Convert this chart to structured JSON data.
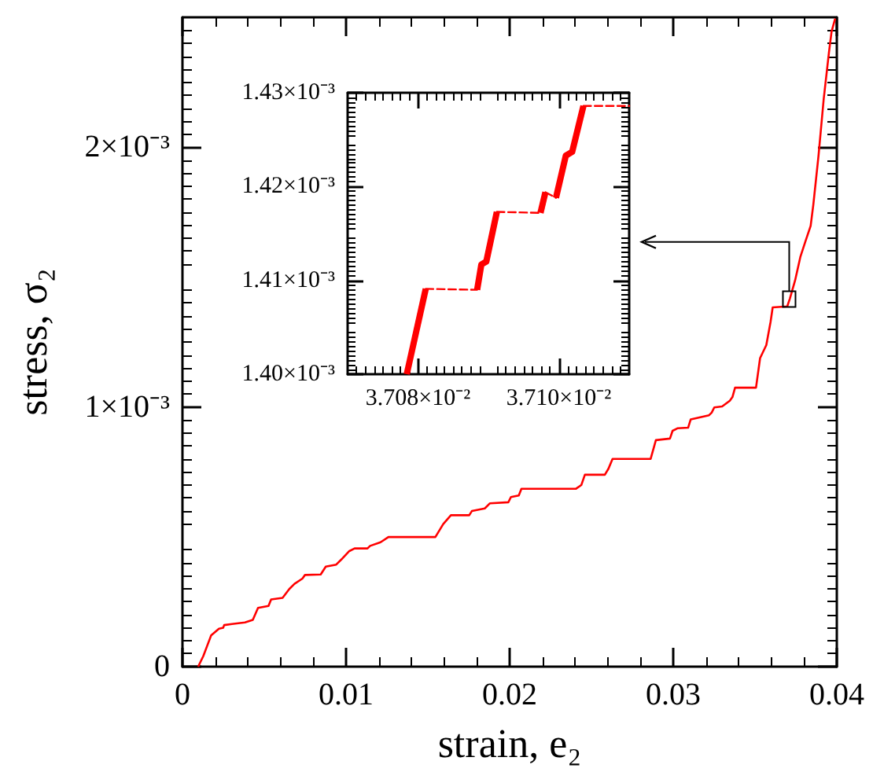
{
  "chart_data": [
    {
      "type": "line",
      "xlabel": "strain, e₂",
      "ylabel": "stress, σ₂",
      "xlim": [
        0,
        0.04
      ],
      "xticks": [
        0,
        0.01,
        0.02,
        0.03,
        0.04
      ],
      "ylim": [
        0,
        0.0025
      ],
      "yticks": [
        0,
        {
          "value": 0.001,
          "label": "1×10⁻³"
        },
        {
          "value": 0.002,
          "label": "2×10⁻³"
        }
      ],
      "series": [
        {
          "color": "#ff0000",
          "x": [
            0.00096,
            0.00127,
            0.00175,
            0.00223,
            0.00249,
            0.00255,
            0.00303,
            0.00382,
            0.0043,
            0.00462,
            0.00526,
            0.00542,
            0.00612,
            0.00653,
            0.00685,
            0.00733,
            0.00749,
            0.00845,
            0.00876,
            0.0094,
            0.00972,
            0.0102,
            0.01052,
            0.01131,
            0.01147,
            0.01211,
            0.01259,
            0.01546,
            0.01594,
            0.01641,
            0.01753,
            0.01769,
            0.01848,
            0.0188,
            0.01992,
            0.02008,
            0.02056,
            0.02072,
            0.02406,
            0.02438,
            0.0246,
            0.02582,
            0.02604,
            0.02629,
            0.02862,
            0.02894,
            0.0298,
            0.02996,
            0.03028,
            0.03091,
            0.03107,
            0.03219,
            0.03235,
            0.03251,
            0.03299,
            0.03346,
            0.03362,
            0.03378,
            0.03506,
            0.03531,
            0.03569,
            0.03595,
            0.03608,
            0.03697,
            0.03713,
            0.03745,
            0.03777,
            0.03808,
            0.0384,
            0.03856,
            0.03888,
            0.0392,
            0.03952,
            0.03968,
            0.0399
          ],
          "values": [
            0,
            4e-05,
            0.00012,
            0.000146,
            0.00015,
            0.00016,
            0.000164,
            0.00017,
            0.00018,
            0.000226,
            0.000234,
            0.000259,
            0.000265,
            0.000299,
            0.000319,
            0.000339,
            0.000353,
            0.000355,
            0.000385,
            0.000393,
            0.000413,
            0.000445,
            0.000455,
            0.000455,
            0.000465,
            0.000479,
            0.000499,
            0.000499,
            0.000549,
            0.000583,
            0.000583,
            0.000599,
            0.000609,
            0.000629,
            0.000633,
            0.000653,
            0.000659,
            0.000685,
            0.000685,
            0.000699,
            0.000739,
            0.000739,
            0.000762,
            0.0008,
            0.0008,
            0.000872,
            0.000878,
            0.000908,
            0.000918,
            0.00092,
            0.000952,
            0.000968,
            0.000978,
            0.000998,
            0.001002,
            0.001024,
            0.001038,
            0.001074,
            0.001074,
            0.001188,
            0.001238,
            0.001327,
            0.001383,
            0.001387,
            0.001417,
            0.001487,
            0.001577,
            0.001637,
            0.001697,
            0.001776,
            0.001966,
            0.002186,
            0.002365,
            0.002445,
            0.002495
          ]
        }
      ]
    },
    {
      "type": "line",
      "xlim": [
        0.03707,
        0.03711
      ],
      "xticks": [
        {
          "value": 0.03708,
          "label": "3.708×10⁻²"
        },
        {
          "value": 0.0371,
          "label": "3.710×10⁻²"
        }
      ],
      "ylim": [
        0.0014,
        0.00143
      ],
      "yticks": [
        {
          "value": 0.0014,
          "label": "1.40×10⁻³"
        },
        {
          "value": 0.00141,
          "label": "1.41×10⁻³"
        },
        {
          "value": 0.00142,
          "label": "1.42×10⁻³"
        },
        {
          "value": 0.00143,
          "label": "1.43×10⁻³"
        }
      ],
      "series": [
        {
          "color": "#ff0000",
          "line_style": "solid",
          "x": [
            0.0370784,
            0.0370811
          ],
          "values": [
            0.0014,
            0.0014091
          ]
        },
        {
          "color": "#ff0000",
          "line_style": "solid",
          "x": [
            0.0370884,
            0.037089,
            0.0370897,
            0.0370912
          ],
          "values": [
            0.001409,
            0.0014117,
            0.001412,
            0.0014173
          ]
        },
        {
          "color": "#ff0000",
          "line_style": "solid",
          "x": [
            0.0370974,
            0.0370981
          ],
          "values": [
            0.0014172,
            0.0014194
          ]
        },
        {
          "color": "#ff0000",
          "line_style": "solid",
          "x": [
            0.0370996,
            0.037101,
            0.0371019,
            0.0371035
          ],
          "values": [
            0.0014188,
            0.0014233,
            0.0014237,
            0.0014286
          ]
        },
        {
          "color": "#ff0000",
          "line_style": "dashed",
          "x": [
            0.0370811,
            0.0370884
          ],
          "values": [
            0.0014091,
            0.001409
          ]
        },
        {
          "color": "#ff0000",
          "line_style": "dashed",
          "x": [
            0.0370912,
            0.0370974
          ],
          "values": [
            0.0014173,
            0.0014172
          ]
        },
        {
          "color": "#ff0000",
          "line_style": "dashed",
          "x": [
            0.0370981,
            0.0370996
          ],
          "values": [
            0.0014194,
            0.0014188
          ]
        },
        {
          "color": "#ff0000",
          "line_style": "dashed",
          "x": [
            0.0371035,
            0.03711
          ],
          "values": [
            0.0014286,
            0.0014286
          ]
        }
      ]
    }
  ]
}
